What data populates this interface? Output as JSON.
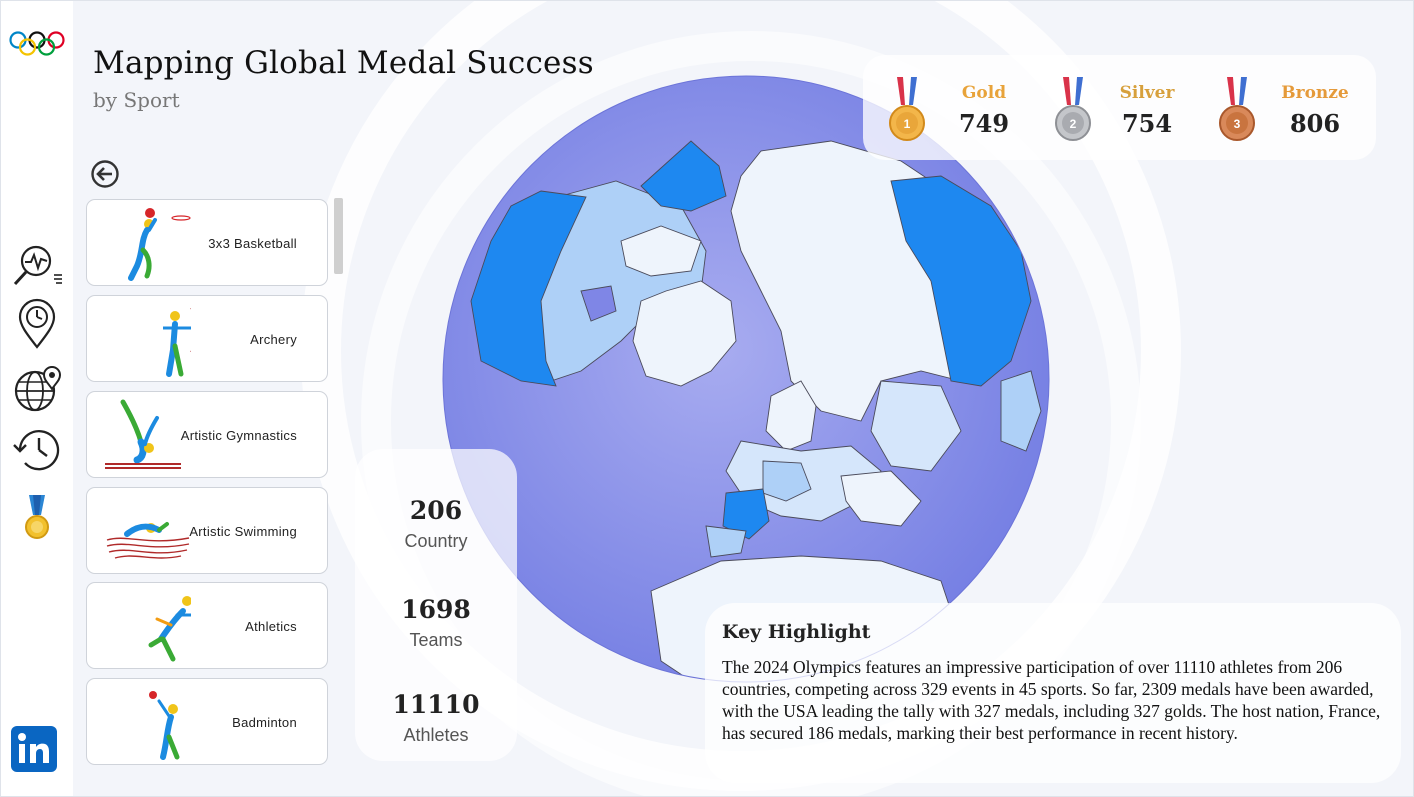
{
  "header": {
    "title": "Mapping Global Medal Success",
    "subtitle": "by Sport"
  },
  "nav": {
    "items": [
      {
        "icon": "analytics-search-icon"
      },
      {
        "icon": "location-clock-icon"
      },
      {
        "icon": "globe-location-icon"
      },
      {
        "icon": "history-icon"
      },
      {
        "icon": "medal-icon"
      }
    ],
    "footer_icon": "linkedin-icon",
    "logo_icon": "olympic-rings-icon"
  },
  "sports": [
    {
      "label": "3x3 Basketball",
      "icon": "basketball-pictogram-icon"
    },
    {
      "label": "Archery",
      "icon": "archery-pictogram-icon"
    },
    {
      "label": "Artistic Gymnastics",
      "icon": "gymnastics-pictogram-icon"
    },
    {
      "label": "Artistic Swimming",
      "icon": "swimming-pictogram-icon"
    },
    {
      "label": "Athletics",
      "icon": "athletics-pictogram-icon"
    },
    {
      "label": "Badminton",
      "icon": "badminton-pictogram-icon"
    }
  ],
  "stats": [
    {
      "value": "206",
      "label": "Country"
    },
    {
      "value": "1698",
      "label": "Teams"
    },
    {
      "value": "11110",
      "label": "Athletes"
    }
  ],
  "medals": {
    "gold": {
      "label": "Gold",
      "value": "749",
      "color": "#e8a33a"
    },
    "silver": {
      "label": "Silver",
      "value": "754",
      "color": "#d7a03c"
    },
    "bronze": {
      "label": "Bronze",
      "value": "806",
      "color": "#e59a3a"
    }
  },
  "highlight": {
    "title": "Key Highlight",
    "text": "The 2024 Olympics features an impressive participation of over 11110 athletes from 206 countries, competing across 329 events in 45 sports. So far, 2309 medals have been awarded, with the USA leading the tally with 327 medals, including 327 golds. The host nation, France, has secured 186 medals, marking their best performance in recent history."
  },
  "colors": {
    "ocean": "#7f86e6",
    "land_light": "#eef4fc",
    "land_mid": "#aed0f7",
    "land_strong": "#1e88f0",
    "accent_blue": "#0a66c2"
  }
}
